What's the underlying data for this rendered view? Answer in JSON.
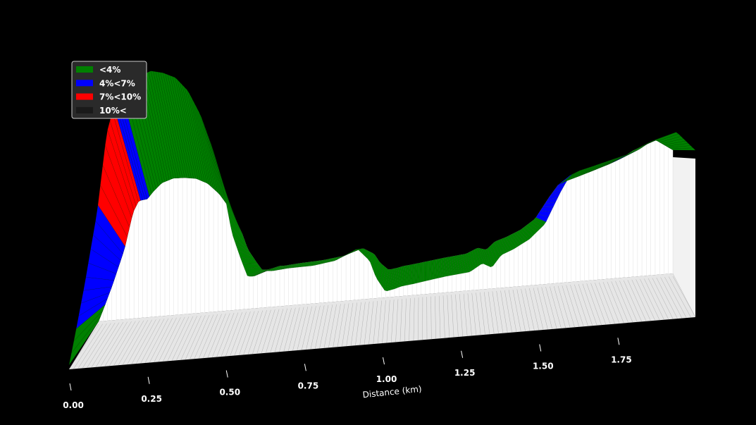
{
  "chart_data": {
    "type": "area",
    "xlabel": "Distance (km)",
    "xlim": [
      0,
      2.0
    ],
    "x_ticks": [
      0.0,
      0.25,
      0.5,
      0.75,
      1.0,
      1.25,
      1.5,
      1.75
    ],
    "x_tick_labels": [
      "0.00",
      "0.25",
      "0.50",
      "0.75",
      "1.00",
      "1.25",
      "1.50",
      "1.75"
    ],
    "legend": {
      "placement": "top-left",
      "entries": [
        {
          "label": "<4%",
          "color": "#008000"
        },
        {
          "label": "4%<7%",
          "color": "#0000ff"
        },
        {
          "label": "7%<10%",
          "color": "#ff0000"
        },
        {
          "label": "10%<",
          "color": "#1a1a1a"
        }
      ]
    },
    "profile": {
      "distance_km": [
        0.0,
        0.02,
        0.05,
        0.09,
        0.12,
        0.14,
        0.17,
        0.19,
        0.22,
        0.26,
        0.3,
        0.34,
        0.38,
        0.42,
        0.46,
        0.5,
        0.52,
        0.55,
        0.57,
        0.59,
        0.61,
        0.63,
        0.65,
        0.7,
        0.78,
        0.85,
        0.92,
        0.96,
        0.98,
        1.01,
        1.04,
        1.06,
        1.1,
        1.2,
        1.28,
        1.32,
        1.35,
        1.38,
        1.42,
        1.47,
        1.52,
        1.57,
        1.6,
        1.63,
        1.67,
        1.72,
        1.78,
        1.82,
        1.86,
        1.9,
        1.94,
        2.0
      ],
      "elevation_rel": [
        0.0,
        0.1,
        0.26,
        0.5,
        0.76,
        0.84,
        0.85,
        0.9,
        0.96,
        0.99,
        0.99,
        0.98,
        0.94,
        0.86,
        0.74,
        0.56,
        0.44,
        0.34,
        0.28,
        0.28,
        0.29,
        0.3,
        0.3,
        0.31,
        0.32,
        0.34,
        0.39,
        0.34,
        0.27,
        0.21,
        0.22,
        0.23,
        0.24,
        0.27,
        0.29,
        0.33,
        0.31,
        0.37,
        0.4,
        0.45,
        0.53,
        0.7,
        0.79,
        0.82,
        0.85,
        0.89,
        0.94,
        0.98,
        1.04,
        1.08,
        1.12,
        1.03
      ],
      "gradient_class": [
        0,
        1,
        1,
        2,
        2,
        1,
        0,
        0,
        0,
        0,
        0,
        0,
        0,
        0,
        0,
        0,
        0,
        0,
        0,
        0,
        0,
        0,
        0,
        0,
        0,
        0,
        0,
        0,
        0,
        0,
        0,
        0,
        0,
        0,
        0,
        0,
        0,
        0,
        0,
        0,
        1,
        1,
        0,
        0,
        0,
        0,
        1,
        0,
        0,
        0,
        0
      ]
    }
  }
}
